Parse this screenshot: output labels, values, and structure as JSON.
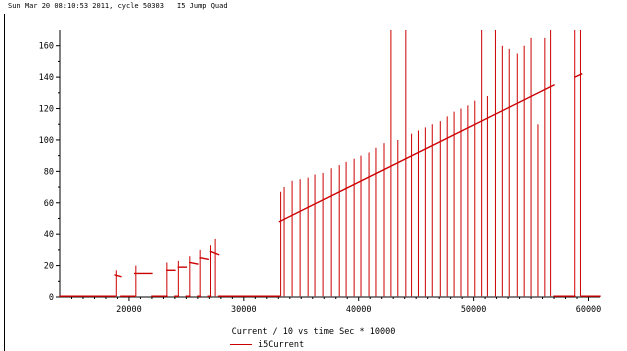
{
  "header": {
    "timestamp": "Sun Mar 20 08:10:53 2011, cycle 50303",
    "title": "I5 Jump Quad"
  },
  "legend": {
    "label": "i5Current"
  },
  "colors": {
    "series": "#cc0000",
    "axis": "#000000"
  },
  "chart_data": {
    "type": "line",
    "title": "",
    "xlabel": "Current / 10 vs time Sec * 10000",
    "ylabel": "",
    "xlim": [
      14000,
      61000
    ],
    "ylim": [
      0,
      170
    ],
    "xticks": [
      20000,
      30000,
      40000,
      50000,
      60000
    ],
    "yticks": [
      0,
      20,
      40,
      60,
      80,
      100,
      120,
      140,
      160
    ],
    "grid": false,
    "legend_position": "bottom",
    "series": [
      {
        "name": "i5Current",
        "baseline_segments": [
          {
            "x": [
              14000,
              18800
            ],
            "y": [
              0.5,
              0.5
            ]
          },
          {
            "x": [
              18800,
              19300
            ],
            "y": [
              14,
              13
            ]
          },
          {
            "x": [
              19300,
              20500
            ],
            "y": [
              0.5,
              0.5
            ]
          },
          {
            "x": [
              20500,
              22000
            ],
            "y": [
              15,
              15
            ]
          },
          {
            "x": [
              22000,
              23300
            ],
            "y": [
              0.5,
              0.5
            ]
          },
          {
            "x": [
              23300,
              24000
            ],
            "y": [
              17,
              17
            ]
          },
          {
            "x": [
              24000,
              24300
            ],
            "y": [
              0.5,
              0.5
            ]
          },
          {
            "x": [
              24300,
              25000
            ],
            "y": [
              19,
              19
            ]
          },
          {
            "x": [
              25000,
              25300
            ],
            "y": [
              0.5,
              0.5
            ]
          },
          {
            "x": [
              25300,
              26000
            ],
            "y": [
              22,
              21
            ]
          },
          {
            "x": [
              26000,
              26200
            ],
            "y": [
              0.5,
              0.5
            ]
          },
          {
            "x": [
              26200,
              26900
            ],
            "y": [
              25,
              24
            ]
          },
          {
            "x": [
              26900,
              27100
            ],
            "y": [
              0.5,
              0.5
            ]
          },
          {
            "x": [
              27100,
              27800
            ],
            "y": [
              29,
              27
            ]
          },
          {
            "x": [
              27800,
              33100
            ],
            "y": [
              0.5,
              0.5
            ]
          },
          {
            "x": [
              33100,
              57000
            ],
            "y": [
              48,
              135
            ]
          },
          {
            "x": [
              57000,
              58800
            ],
            "y": [
              0.5,
              0.5
            ]
          },
          {
            "x": [
              58800,
              59400
            ],
            "y": [
              140,
              142
            ]
          },
          {
            "x": [
              59400,
              61000
            ],
            "y": [
              0.5,
              0.5
            ]
          }
        ],
        "spikes": {
          "x": [
            18900,
            20600,
            23300,
            24300,
            25300,
            26200,
            27100,
            27500,
            33200,
            33500,
            34200,
            34900,
            35600,
            36200,
            36900,
            37600,
            38300,
            38900,
            39600,
            40200,
            40900,
            41500,
            42200,
            42800,
            43400,
            44100,
            44600,
            45200,
            45800,
            46400,
            47100,
            47700,
            48300,
            48900,
            49500,
            50100,
            50700,
            51200,
            51900,
            52500,
            53100,
            53800,
            54400,
            55000,
            55600,
            56200,
            56700,
            58800,
            59300
          ],
          "y": [
            17,
            20,
            22,
            23,
            26,
            30,
            33,
            37,
            67,
            70,
            74,
            75,
            76,
            78,
            79,
            82,
            84,
            86,
            88,
            90,
            92,
            95,
            98,
            170,
            100,
            170,
            104,
            106,
            108,
            110,
            112,
            115,
            118,
            120,
            122,
            125,
            170,
            128,
            170,
            160,
            158,
            155,
            160,
            165,
            110,
            165,
            170,
            170,
            170
          ]
        }
      }
    ]
  }
}
